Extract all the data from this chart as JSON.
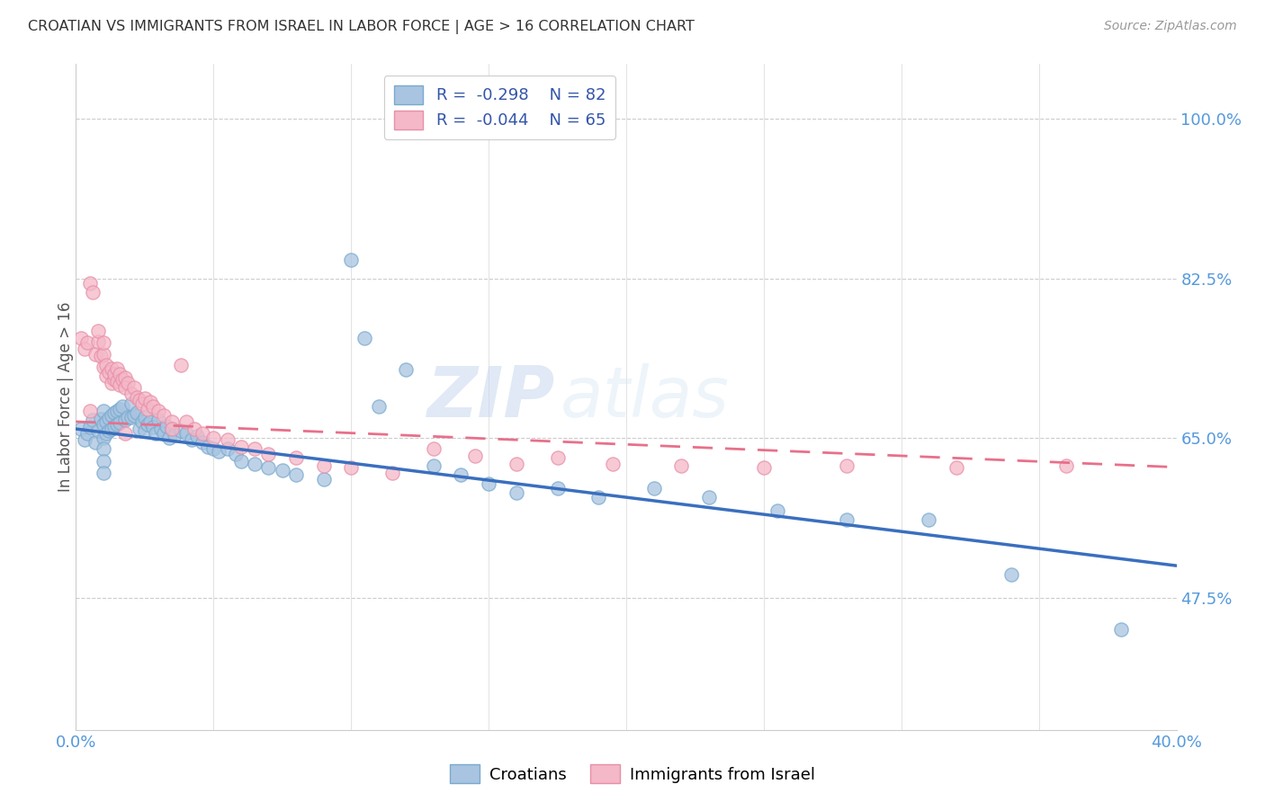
{
  "title": "CROATIAN VS IMMIGRANTS FROM ISRAEL IN LABOR FORCE | AGE > 16 CORRELATION CHART",
  "source": "Source: ZipAtlas.com",
  "ylabel": "In Labor Force | Age > 16",
  "ytick_values": [
    0.475,
    0.65,
    0.825,
    1.0
  ],
  "xlim": [
    0.0,
    0.4
  ],
  "ylim": [
    0.33,
    1.06
  ],
  "blue_color": "#A8C4E0",
  "pink_color": "#F4B8C8",
  "blue_edge_color": "#7AAACF",
  "pink_edge_color": "#E88FA8",
  "blue_line_color": "#3A6FBF",
  "pink_line_color": "#E8708A",
  "watermark_zip": "ZIP",
  "watermark_atlas": "atlas",
  "blue_scatter_x": [
    0.002,
    0.003,
    0.004,
    0.005,
    0.006,
    0.007,
    0.008,
    0.009,
    0.01,
    0.01,
    0.01,
    0.01,
    0.01,
    0.01,
    0.011,
    0.011,
    0.012,
    0.012,
    0.013,
    0.013,
    0.014,
    0.014,
    0.015,
    0.015,
    0.016,
    0.016,
    0.017,
    0.018,
    0.019,
    0.02,
    0.02,
    0.021,
    0.022,
    0.023,
    0.024,
    0.025,
    0.025,
    0.026,
    0.027,
    0.028,
    0.029,
    0.03,
    0.031,
    0.032,
    0.033,
    0.034,
    0.035,
    0.036,
    0.038,
    0.04,
    0.042,
    0.044,
    0.046,
    0.048,
    0.05,
    0.052,
    0.055,
    0.058,
    0.06,
    0.065,
    0.07,
    0.075,
    0.08,
    0.09,
    0.1,
    0.105,
    0.11,
    0.12,
    0.13,
    0.14,
    0.15,
    0.16,
    0.175,
    0.19,
    0.21,
    0.23,
    0.255,
    0.28,
    0.31,
    0.34,
    0.38
  ],
  "blue_scatter_y": [
    0.66,
    0.648,
    0.655,
    0.662,
    0.67,
    0.645,
    0.658,
    0.671,
    0.68,
    0.665,
    0.65,
    0.638,
    0.625,
    0.612,
    0.668,
    0.655,
    0.672,
    0.658,
    0.675,
    0.66,
    0.678,
    0.663,
    0.68,
    0.665,
    0.682,
    0.667,
    0.685,
    0.67,
    0.673,
    0.688,
    0.673,
    0.675,
    0.678,
    0.66,
    0.668,
    0.673,
    0.658,
    0.665,
    0.668,
    0.662,
    0.655,
    0.67,
    0.66,
    0.655,
    0.663,
    0.65,
    0.66,
    0.653,
    0.658,
    0.655,
    0.648,
    0.652,
    0.645,
    0.64,
    0.638,
    0.635,
    0.638,
    0.632,
    0.625,
    0.622,
    0.618,
    0.615,
    0.61,
    0.605,
    0.845,
    0.76,
    0.685,
    0.725,
    0.62,
    0.61,
    0.6,
    0.59,
    0.595,
    0.585,
    0.595,
    0.585,
    0.57,
    0.56,
    0.56,
    0.5,
    0.44
  ],
  "pink_scatter_x": [
    0.002,
    0.003,
    0.004,
    0.005,
    0.006,
    0.007,
    0.008,
    0.008,
    0.009,
    0.01,
    0.01,
    0.01,
    0.011,
    0.011,
    0.012,
    0.013,
    0.013,
    0.014,
    0.014,
    0.015,
    0.015,
    0.016,
    0.016,
    0.017,
    0.018,
    0.018,
    0.019,
    0.02,
    0.021,
    0.022,
    0.023,
    0.024,
    0.025,
    0.026,
    0.027,
    0.028,
    0.03,
    0.032,
    0.035,
    0.038,
    0.04,
    0.043,
    0.046,
    0.05,
    0.055,
    0.06,
    0.065,
    0.07,
    0.08,
    0.09,
    0.1,
    0.115,
    0.13,
    0.145,
    0.16,
    0.175,
    0.195,
    0.22,
    0.25,
    0.28,
    0.32,
    0.36,
    0.005,
    0.018,
    0.035
  ],
  "pink_scatter_y": [
    0.76,
    0.748,
    0.755,
    0.82,
    0.81,
    0.742,
    0.756,
    0.768,
    0.74,
    0.728,
    0.742,
    0.755,
    0.73,
    0.718,
    0.722,
    0.71,
    0.726,
    0.714,
    0.72,
    0.712,
    0.726,
    0.708,
    0.72,
    0.714,
    0.716,
    0.705,
    0.71,
    0.698,
    0.705,
    0.695,
    0.692,
    0.688,
    0.694,
    0.682,
    0.69,
    0.685,
    0.68,
    0.675,
    0.668,
    0.73,
    0.668,
    0.66,
    0.655,
    0.65,
    0.648,
    0.64,
    0.638,
    0.632,
    0.628,
    0.62,
    0.618,
    0.612,
    0.638,
    0.63,
    0.622,
    0.628,
    0.622,
    0.62,
    0.618,
    0.62,
    0.618,
    0.62,
    0.68,
    0.655,
    0.66
  ]
}
